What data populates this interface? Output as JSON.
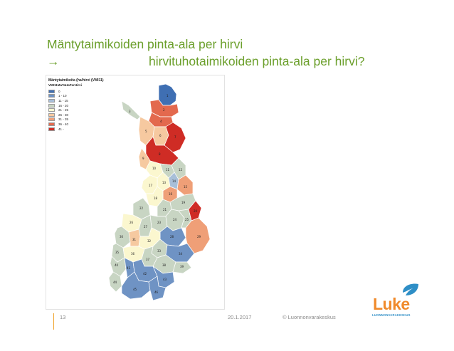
{
  "title": {
    "line1": "Mäntytaimikoiden pinta-ala per hirvi",
    "arrow": "→",
    "line2": "hirvituhotaimikoiden pinta-ala per hirvi?"
  },
  "map": {
    "legend_title": "Mäntytaimikoita (ha/hirvi (VMI11)",
    "legend_subtitle": "VMI11MaTaHaPerHirvi",
    "classes": [
      {
        "label": "0",
        "color": "#3f6fb3"
      },
      {
        "label": "1 - 10",
        "color": "#6f93c4"
      },
      {
        "label": "11 - 15",
        "color": "#a8bfd8"
      },
      {
        "label": "16 - 20",
        "color": "#c8d5c3"
      },
      {
        "label": "21 - 25",
        "color": "#fbf7cf"
      },
      {
        "label": "26 - 30",
        "color": "#f6c9a0"
      },
      {
        "label": "31 - 35",
        "color": "#ef9f77"
      },
      {
        "label": "36 - 40",
        "color": "#e3694e"
      },
      {
        "label": "41 -",
        "color": "#cf2c25"
      }
    ],
    "region_labels": [
      "1",
      "2",
      "3",
      "4",
      "5",
      "6",
      "7",
      "8",
      "9",
      "10",
      "11",
      "12",
      "13",
      "14",
      "15",
      "16",
      "17",
      "18",
      "19",
      "20",
      "21",
      "22",
      "23",
      "24",
      "25",
      "26",
      "27",
      "28",
      "29",
      "30",
      "31",
      "32",
      "33",
      "34",
      "35",
      "36",
      "37",
      "38",
      "39",
      "40",
      "41",
      "42",
      "43",
      "44",
      "45",
      "46"
    ]
  },
  "footer": {
    "page": "13",
    "date": "20.1.2017",
    "copyright": "© Luonnonvarakeskus"
  },
  "logo": {
    "name": "Luke",
    "subtitle": "LUONNONVARAKESKUS",
    "accent_orange": "#f08a2b",
    "accent_blue": "#2e8ec6"
  },
  "colors": {
    "title": "#6b9f2b",
    "footer_rule": "#f0a32b"
  }
}
